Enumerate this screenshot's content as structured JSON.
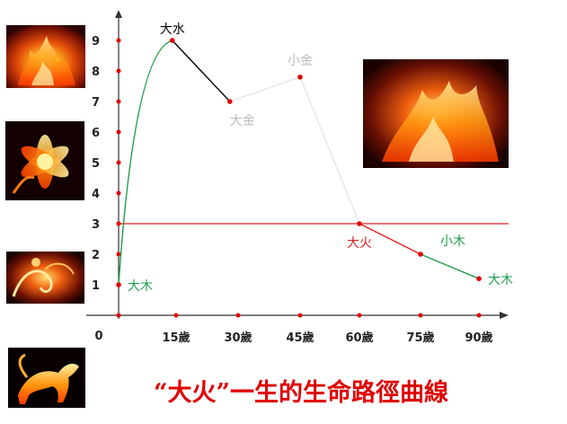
{
  "chart_data": {
    "type": "line",
    "title": "“大火”一生的生命路徑曲線",
    "xlabel": "",
    "ylabel": "",
    "xlim": [
      0,
      90
    ],
    "ylim": [
      0,
      9.3
    ],
    "x_ticks": [
      {
        "value": 15,
        "label": "15歲"
      },
      {
        "value": 30,
        "label": "30歲"
      },
      {
        "value": 45,
        "label": "45歲"
      },
      {
        "value": 60,
        "label": "60歲"
      },
      {
        "value": 75,
        "label": "75歲"
      },
      {
        "value": 90,
        "label": "90歲"
      }
    ],
    "origin_label": "0",
    "y_ticks": [
      1,
      2,
      3,
      4,
      5,
      6,
      7,
      8,
      9
    ],
    "reference_line": {
      "y": 3,
      "color": "#e02020"
    },
    "segments": [
      {
        "color": "#1e9e4a",
        "curve": "smooth",
        "points": [
          [
            0,
            1
          ],
          [
            3,
            6.5
          ],
          [
            8,
            8.8
          ],
          [
            14,
            9
          ]
        ]
      },
      {
        "color": "#000000",
        "curve": "straight",
        "points": [
          [
            14,
            9
          ],
          [
            28,
            7
          ]
        ]
      },
      {
        "color": "#dddddd",
        "curve": "straight",
        "points": [
          [
            28,
            7
          ],
          [
            45,
            7.8
          ],
          [
            60,
            3
          ]
        ]
      },
      {
        "color": "#e02020",
        "curve": "straight",
        "points": [
          [
            60,
            3
          ],
          [
            75,
            2
          ]
        ]
      },
      {
        "color": "#1e9e4a",
        "curve": "straight",
        "points": [
          [
            75,
            2
          ],
          [
            90,
            1.2
          ]
        ]
      }
    ],
    "markers": [
      [
        0,
        1
      ],
      [
        14,
        9
      ],
      [
        28,
        7
      ],
      [
        45,
        7.8
      ],
      [
        60,
        3
      ],
      [
        75,
        2
      ],
      [
        90,
        1.2
      ]
    ],
    "annotations": [
      {
        "text": "大木",
        "x": 0,
        "y": 1,
        "color": "#1e9e4a",
        "anchor": "right"
      },
      {
        "text": "大水",
        "x": 14,
        "y": 9,
        "color": "#000000",
        "anchor": "above"
      },
      {
        "text": "大金",
        "x": 28,
        "y": 7,
        "color": "#bbbbbb",
        "anchor": "below"
      },
      {
        "text": "小金",
        "x": 45,
        "y": 7.8,
        "color": "#bbbbbb",
        "anchor": "above"
      },
      {
        "text": "大火",
        "x": 60,
        "y": 3,
        "color": "#e02020",
        "anchor": "below"
      },
      {
        "text": "小木",
        "x": 75,
        "y": 2,
        "color": "#1e9e4a",
        "anchor": "right-above"
      },
      {
        "text": "大木",
        "x": 90,
        "y": 1.2,
        "color": "#1e9e4a",
        "anchor": "right"
      }
    ]
  },
  "images": [
    {
      "name": "flame-horse-photo-1",
      "icon": "fire-photo"
    },
    {
      "name": "fire-flower-photo",
      "icon": "fire-flower"
    },
    {
      "name": "fire-swirl-photo",
      "icon": "fire-swirl"
    },
    {
      "name": "running-fire-horse-photo",
      "icon": "fire-horse"
    },
    {
      "name": "large-fire-horse-photo",
      "icon": "fire-horse"
    }
  ]
}
